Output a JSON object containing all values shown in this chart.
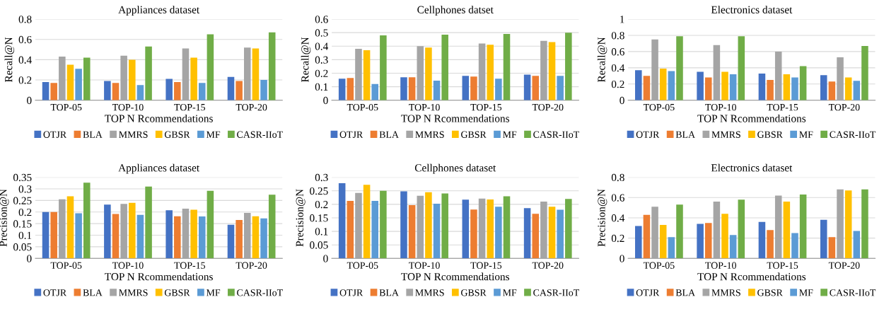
{
  "chart_data": [
    {
      "type": "bar",
      "title": "Appliances dataset",
      "xlabel": "TOP N Rcommendations",
      "ylabel": "Recall@N",
      "categories": [
        "TOP-05",
        "TOP-10",
        "TOP-15",
        "TOP-20"
      ],
      "ylim": [
        0,
        0.8
      ],
      "yticks": [
        0,
        0.2,
        0.4,
        0.6,
        0.8
      ],
      "grid": "y",
      "legend": "bottom",
      "series": [
        {
          "name": "OTJR",
          "color": "#4472c4",
          "values": [
            0.18,
            0.19,
            0.21,
            0.23
          ]
        },
        {
          "name": "BLA",
          "color": "#ed7d31",
          "values": [
            0.17,
            0.17,
            0.18,
            0.19
          ]
        },
        {
          "name": "MMRS",
          "color": "#a5a5a5",
          "values": [
            0.43,
            0.44,
            0.51,
            0.52
          ]
        },
        {
          "name": "GBSR",
          "color": "#ffc000",
          "values": [
            0.35,
            0.4,
            0.42,
            0.51
          ]
        },
        {
          "name": "MF",
          "color": "#5b9bd5",
          "values": [
            0.31,
            0.15,
            0.17,
            0.2
          ]
        },
        {
          "name": "CASR-IIoT",
          "color": "#70ad47",
          "values": [
            0.42,
            0.53,
            0.65,
            0.67
          ]
        }
      ]
    },
    {
      "type": "bar",
      "title": "Cellphones datset",
      "xlabel": "TOP N Rcommendations",
      "ylabel": "Recall@N",
      "categories": [
        "TOP-05",
        "TOP-10",
        "TOP-15",
        "TOP-20"
      ],
      "ylim": [
        0,
        0.6
      ],
      "yticks": [
        0,
        0.1,
        0.2,
        0.3,
        0.4,
        0.5,
        0.6
      ],
      "grid": "y",
      "legend": "bottom",
      "series": [
        {
          "name": "OTJR",
          "color": "#4472c4",
          "values": [
            0.16,
            0.17,
            0.18,
            0.19
          ]
        },
        {
          "name": "BLA",
          "color": "#ed7d31",
          "values": [
            0.165,
            0.17,
            0.175,
            0.18
          ]
        },
        {
          "name": "MMRS",
          "color": "#a5a5a5",
          "values": [
            0.38,
            0.4,
            0.42,
            0.44
          ]
        },
        {
          "name": "GBSR",
          "color": "#ffc000",
          "values": [
            0.37,
            0.39,
            0.41,
            0.43
          ]
        },
        {
          "name": "MF",
          "color": "#5b9bd5",
          "values": [
            0.12,
            0.145,
            0.16,
            0.18
          ]
        },
        {
          "name": "CASR-IIoT",
          "color": "#70ad47",
          "values": [
            0.48,
            0.485,
            0.49,
            0.5
          ]
        }
      ]
    },
    {
      "type": "bar",
      "title": "Electronics dataset",
      "xlabel": "TOP N Rcommendations",
      "ylabel": "Recall@N",
      "categories": [
        "TOP-05",
        "TOP-10",
        "TOP-15",
        "TOP-20"
      ],
      "ylim": [
        0,
        1
      ],
      "yticks": [
        0,
        0.2,
        0.4,
        0.6,
        0.8,
        1
      ],
      "grid": "y",
      "legend": "bottom",
      "series": [
        {
          "name": "OTJR",
          "color": "#4472c4",
          "values": [
            0.37,
            0.35,
            0.33,
            0.31
          ]
        },
        {
          "name": "BLA",
          "color": "#ed7d31",
          "values": [
            0.3,
            0.28,
            0.25,
            0.23
          ]
        },
        {
          "name": "MMRS",
          "color": "#a5a5a5",
          "values": [
            0.75,
            0.68,
            0.6,
            0.53
          ]
        },
        {
          "name": "GBSR",
          "color": "#ffc000",
          "values": [
            0.39,
            0.35,
            0.32,
            0.28
          ]
        },
        {
          "name": "MF",
          "color": "#5b9bd5",
          "values": [
            0.36,
            0.32,
            0.28,
            0.24
          ]
        },
        {
          "name": "CASR-IIoT",
          "color": "#70ad47",
          "values": [
            0.79,
            0.79,
            0.42,
            0.67
          ]
        }
      ]
    },
    {
      "type": "bar",
      "title": "Appliances dataset",
      "xlabel": "TOP N Rcommendations",
      "ylabel": "Precision@N",
      "categories": [
        "TOP-05",
        "TOP-10",
        "TOP-15",
        "TOP-20"
      ],
      "ylim": [
        0,
        0.35
      ],
      "yticks": [
        0,
        0.05,
        0.1,
        0.15,
        0.2,
        0.25,
        0.3,
        0.35
      ],
      "grid": "y",
      "legend": "bottom",
      "series": [
        {
          "name": "OTJR",
          "color": "#4472c4",
          "values": [
            0.2,
            0.232,
            0.208,
            0.145
          ]
        },
        {
          "name": "BLA",
          "color": "#ed7d31",
          "values": [
            0.2,
            0.192,
            0.182,
            0.166
          ]
        },
        {
          "name": "MMRS",
          "color": "#a5a5a5",
          "values": [
            0.255,
            0.235,
            0.215,
            0.196
          ]
        },
        {
          "name": "GBSR",
          "color": "#ffc000",
          "values": [
            0.268,
            0.24,
            0.21,
            0.182
          ]
        },
        {
          "name": "MF",
          "color": "#5b9bd5",
          "values": [
            0.195,
            0.188,
            0.181,
            0.173
          ]
        },
        {
          "name": "CASR-IIoT",
          "color": "#70ad47",
          "values": [
            0.327,
            0.31,
            0.292,
            0.275
          ]
        }
      ]
    },
    {
      "type": "bar",
      "title": "Cellphones dataset",
      "xlabel": "TOP N Rcommendations",
      "ylabel": "Precision@N",
      "categories": [
        "TOP-05",
        "TOP-10",
        "TOP-15",
        "TOP-20"
      ],
      "ylim": [
        0,
        0.3
      ],
      "yticks": [
        0,
        0.05,
        0.1,
        0.15,
        0.2,
        0.25,
        0.3
      ],
      "grid": "y",
      "legend": "bottom",
      "series": [
        {
          "name": "OTJR",
          "color": "#4472c4",
          "values": [
            0.278,
            0.248,
            0.217,
            0.186
          ]
        },
        {
          "name": "BLA",
          "color": "#ed7d31",
          "values": [
            0.213,
            0.197,
            0.181,
            0.165
          ]
        },
        {
          "name": "MMRS",
          "color": "#a5a5a5",
          "values": [
            0.242,
            0.232,
            0.221,
            0.21
          ]
        },
        {
          "name": "GBSR",
          "color": "#ffc000",
          "values": [
            0.272,
            0.245,
            0.218,
            0.191
          ]
        },
        {
          "name": "MF",
          "color": "#5b9bd5",
          "values": [
            0.213,
            0.202,
            0.191,
            0.18
          ]
        },
        {
          "name": "CASR-IIoT",
          "color": "#70ad47",
          "values": [
            0.25,
            0.24,
            0.23,
            0.22
          ]
        }
      ]
    },
    {
      "type": "bar",
      "title": "Electronics dataset",
      "xlabel": "TOP N Rcommendations",
      "ylabel": "Precision@N",
      "categories": [
        "TOP-05",
        "TOP-10",
        "TOP-15",
        "TOP-20"
      ],
      "ylim": [
        0,
        0.8
      ],
      "yticks": [
        0,
        0.2,
        0.4,
        0.6,
        0.8
      ],
      "grid": "y",
      "legend": "bottom",
      "series": [
        {
          "name": "OTJR",
          "color": "#4472c4",
          "values": [
            0.32,
            0.34,
            0.36,
            0.38
          ]
        },
        {
          "name": "BLA",
          "color": "#ed7d31",
          "values": [
            0.43,
            0.35,
            0.28,
            0.21
          ]
        },
        {
          "name": "MMRS",
          "color": "#a5a5a5",
          "values": [
            0.51,
            0.56,
            0.62,
            0.68
          ]
        },
        {
          "name": "GBSR",
          "color": "#ffc000",
          "values": [
            0.33,
            0.44,
            0.56,
            0.67
          ]
        },
        {
          "name": "MF",
          "color": "#5b9bd5",
          "values": [
            0.21,
            0.23,
            0.25,
            0.27
          ]
        },
        {
          "name": "CASR-IIoT",
          "color": "#70ad47",
          "values": [
            0.53,
            0.58,
            0.63,
            0.68
          ]
        }
      ]
    }
  ]
}
